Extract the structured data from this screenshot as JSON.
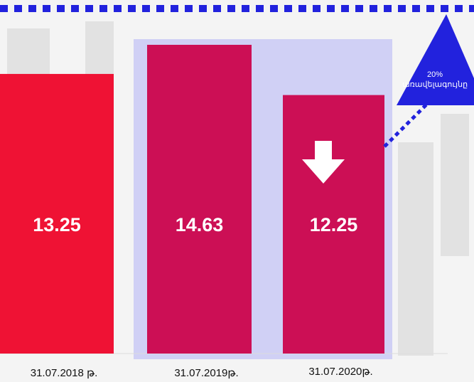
{
  "chart_data": {
    "type": "bar",
    "categories": [
      "31.07.2018 թ.",
      "31.07.2019թ.",
      "31.07.2020թ."
    ],
    "values": [
      13.25,
      14.63,
      12.25
    ],
    "colors": [
      "#ef1234",
      "#cc0f55",
      "#cc0f55"
    ],
    "annotation": {
      "value": "20%",
      "text": "առավելագույնը"
    }
  }
}
